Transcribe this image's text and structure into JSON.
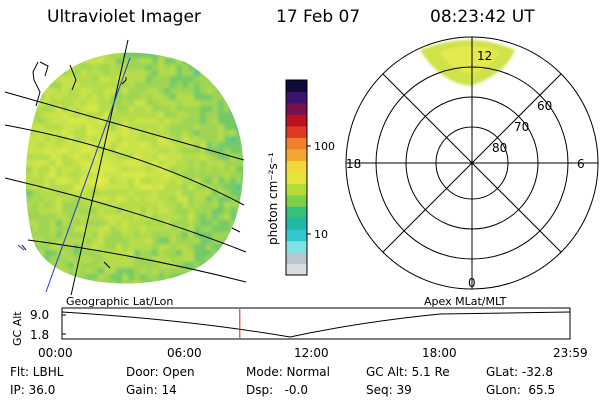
{
  "header": {
    "title": "Ultraviolet Imager",
    "date": "17 Feb 07",
    "time": "08:23:42 UT"
  },
  "colorbar": {
    "label": "photon cm⁻²s⁻¹",
    "ticks": [
      "100",
      "10"
    ],
    "colors": [
      "#d8dde2",
      "#b9c6cf",
      "#7fe3e3",
      "#34c8cc",
      "#22b8a8",
      "#35c17a",
      "#7dd04a",
      "#b6dc3a",
      "#e4e638",
      "#f2d838",
      "#f2a732",
      "#f07f2a",
      "#e03a25",
      "#b8121e",
      "#7a1050",
      "#3a1570",
      "#120a3a"
    ]
  },
  "globe": {
    "map_colors": [
      "#e8ee4e",
      "#d8e84a",
      "#c8e34a",
      "#b5dc4c",
      "#9fd553",
      "#74ca67",
      "#4cc593"
    ]
  },
  "polar": {
    "labels": {
      "top": "12",
      "left": "18",
      "right": "6",
      "bottom": "0"
    },
    "lat_labels": [
      "60",
      "70",
      "80"
    ]
  },
  "timeline": {
    "left_title": "Geographic Lat/Lon",
    "right_title": "Apex MLat/MLT",
    "axis_label": "GC Alt",
    "y_ticks": [
      "9.0",
      "1.8"
    ],
    "x_ticks": [
      "00:00",
      "06:00",
      "12:00",
      "18:00",
      "23:59"
    ],
    "current_time_hours": 8.4,
    "marker_color": "#e31a1c"
  },
  "footer": {
    "flt": "Flt: LBHL",
    "ip": "IP: 36.0",
    "door": "Door: Open",
    "gain": "Gain: 14",
    "mode": "Mode: Normal",
    "dsp": "Dsp:   -0.0",
    "gcalt": "GC Alt: 5.1 Re",
    "seq": "Seq: 39",
    "glat": "GLat: -32.8",
    "glon": "GLon:  65.5"
  }
}
